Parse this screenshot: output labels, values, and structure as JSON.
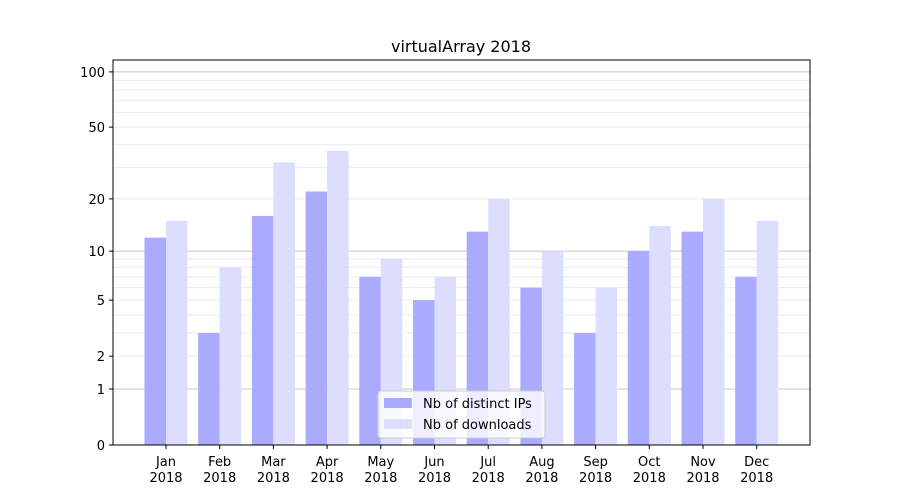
{
  "chart_data": {
    "type": "bar",
    "title": "virtualArray 2018",
    "xlabel": "",
    "ylabel": "",
    "yscale": "log10(1+y)",
    "ylim": [
      0,
      116
    ],
    "yticks": [
      0,
      1,
      2,
      5,
      10,
      20,
      50,
      100
    ],
    "grid": true,
    "legend_position": "bottom-center",
    "categories": [
      "Jan\n2018",
      "Feb\n2018",
      "Mar\n2018",
      "Apr\n2018",
      "May\n2018",
      "Jun\n2018",
      "Jul\n2018",
      "Aug\n2018",
      "Sep\n2018",
      "Oct\n2018",
      "Nov\n2018",
      "Dec\n2018"
    ],
    "series": [
      {
        "name": "Nb of distinct IPs",
        "color": "#aaaaff",
        "values": [
          12,
          3,
          16,
          22,
          7,
          5,
          13,
          6,
          3,
          10,
          13,
          7
        ]
      },
      {
        "name": "Nb of downloads",
        "color": "#ddddff",
        "values": [
          15,
          8,
          32,
          37,
          9,
          7,
          20,
          10,
          6,
          14,
          20,
          15
        ]
      }
    ]
  }
}
